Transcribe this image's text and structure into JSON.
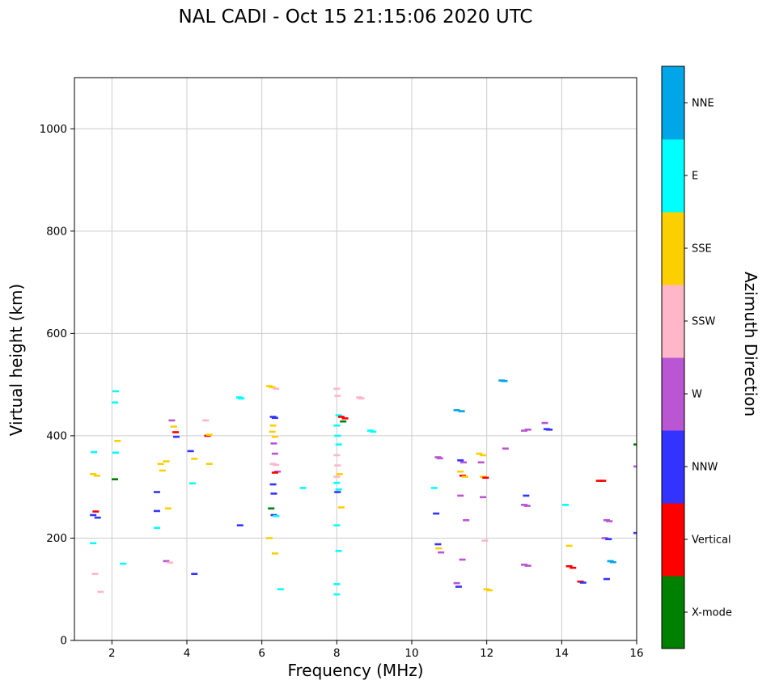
{
  "title": "NAL CADI - Oct 15 21:15:06 2020 UTC",
  "chart_data": {
    "type": "scatter",
    "title": "NAL CADI - Oct 15 21:15:06 2020 UTC",
    "xlabel": "Frequency (MHz)",
    "ylabel": "Virtual height (km)",
    "legend_title": "Azimuth Direction",
    "xlim": [
      1,
      16
    ],
    "ylim": [
      0,
      1100
    ],
    "x_ticks": [
      2,
      4,
      6,
      8,
      10,
      12,
      14,
      16
    ],
    "y_ticks": [
      0,
      200,
      400,
      600,
      800,
      1000
    ],
    "grid": true,
    "marker": "horizontal-dash",
    "legend_position": "right-colorbar",
    "categories": [
      {
        "label": "X-mode",
        "color": "#008000"
      },
      {
        "label": "Vertical",
        "color": "#fe0000"
      },
      {
        "label": "NNW",
        "color": "#3333ff"
      },
      {
        "label": "W",
        "color": "#ba55d3"
      },
      {
        "label": "SSW",
        "color": "#ffb6c8"
      },
      {
        "label": "SSE",
        "color": "#fccf00"
      },
      {
        "label": "E",
        "color": "#00ffff"
      },
      {
        "label": "NNE",
        "color": "#00a6e8"
      }
    ],
    "points": [
      [
        1.5,
        325,
        "SSE"
      ],
      [
        1.6,
        322,
        "SSE"
      ],
      [
        1.52,
        368,
        "E"
      ],
      [
        1.5,
        245,
        "NNW"
      ],
      [
        1.57,
        252,
        "Vertical"
      ],
      [
        1.62,
        240,
        "NNW"
      ],
      [
        1.5,
        190,
        "E"
      ],
      [
        1.55,
        130,
        "SSW"
      ],
      [
        1.7,
        95,
        "SSW"
      ],
      [
        2.1,
        487,
        "E"
      ],
      [
        2.08,
        465,
        "E"
      ],
      [
        2.15,
        390,
        "SSE"
      ],
      [
        2.1,
        367,
        "E"
      ],
      [
        2.08,
        315,
        "X-mode"
      ],
      [
        2.3,
        150,
        "E"
      ],
      [
        3.3,
        345,
        "SSE"
      ],
      [
        3.35,
        332,
        "SSE"
      ],
      [
        3.45,
        350,
        "SSE"
      ],
      [
        3.2,
        290,
        "NNW"
      ],
      [
        3.2,
        253,
        "NNW"
      ],
      [
        3.2,
        220,
        "E"
      ],
      [
        3.5,
        258,
        "SSE"
      ],
      [
        3.45,
        155,
        "W"
      ],
      [
        3.55,
        152,
        "SSW"
      ],
      [
        3.6,
        430,
        "W"
      ],
      [
        3.65,
        418,
        "SSE"
      ],
      [
        3.7,
        407,
        "Vertical"
      ],
      [
        3.72,
        398,
        "NNW"
      ],
      [
        4.1,
        370,
        "NNW"
      ],
      [
        4.2,
        355,
        "SSE"
      ],
      [
        4.15,
        307,
        "E"
      ],
      [
        4.2,
        130,
        "NNW"
      ],
      [
        4.5,
        430,
        "SSW"
      ],
      [
        4.55,
        400,
        "Vertical"
      ],
      [
        4.6,
        402,
        "SSE"
      ],
      [
        4.6,
        345,
        "SSE"
      ],
      [
        5.4,
        475,
        "E"
      ],
      [
        5.45,
        473,
        "E"
      ],
      [
        5.42,
        225,
        "NNW"
      ],
      [
        6.2,
        497,
        "SSE"
      ],
      [
        6.28,
        495,
        "SSE"
      ],
      [
        6.38,
        492,
        "SSW"
      ],
      [
        6.3,
        437,
        "NNW"
      ],
      [
        6.35,
        435,
        "NNW"
      ],
      [
        6.3,
        420,
        "SSE"
      ],
      [
        6.28,
        408,
        "SSE"
      ],
      [
        6.35,
        398,
        "SSE"
      ],
      [
        6.32,
        385,
        "W"
      ],
      [
        6.35,
        365,
        "W"
      ],
      [
        6.3,
        345,
        "SSW"
      ],
      [
        6.38,
        343,
        "SSW"
      ],
      [
        6.42,
        330,
        "W"
      ],
      [
        6.35,
        328,
        "Vertical"
      ],
      [
        6.3,
        305,
        "NNW"
      ],
      [
        6.32,
        287,
        "NNW"
      ],
      [
        6.25,
        258,
        "X-mode"
      ],
      [
        6.32,
        245,
        "NNW"
      ],
      [
        6.38,
        243,
        "E"
      ],
      [
        6.2,
        200,
        "SSE"
      ],
      [
        6.35,
        170,
        "SSE"
      ],
      [
        6.5,
        100,
        "E"
      ],
      [
        7.1,
        298,
        "E"
      ],
      [
        8.0,
        492,
        "SSW"
      ],
      [
        8.02,
        478,
        "SSW"
      ],
      [
        8.05,
        440,
        "E"
      ],
      [
        8.12,
        437,
        "Vertical"
      ],
      [
        8.22,
        434,
        "Vertical"
      ],
      [
        8.17,
        428,
        "X-mode"
      ],
      [
        8.0,
        420,
        "E"
      ],
      [
        8.02,
        400,
        "E"
      ],
      [
        8.05,
        383,
        "E"
      ],
      [
        8.0,
        362,
        "SSW"
      ],
      [
        8.02,
        342,
        "SSW"
      ],
      [
        8.07,
        325,
        "SSE"
      ],
      [
        8.0,
        320,
        "SSW"
      ],
      [
        8.0,
        308,
        "E"
      ],
      [
        8.05,
        295,
        "E"
      ],
      [
        8.02,
        290,
        "NNW"
      ],
      [
        8.12,
        260,
        "SSE"
      ],
      [
        8.0,
        225,
        "E"
      ],
      [
        8.05,
        175,
        "E"
      ],
      [
        8.0,
        110,
        "E"
      ],
      [
        8.0,
        90,
        "E"
      ],
      [
        8.6,
        475,
        "SSW"
      ],
      [
        8.65,
        473,
        "SSW"
      ],
      [
        8.9,
        410,
        "E"
      ],
      [
        8.97,
        408,
        "E"
      ],
      [
        10.6,
        298,
        "E"
      ],
      [
        10.7,
        358,
        "W"
      ],
      [
        10.75,
        356,
        "W"
      ],
      [
        10.65,
        248,
        "NNW"
      ],
      [
        10.7,
        188,
        "NNW"
      ],
      [
        10.72,
        180,
        "SSE"
      ],
      [
        10.78,
        172,
        "W"
      ],
      [
        11.2,
        450,
        "NNE"
      ],
      [
        11.33,
        448,
        "NNE"
      ],
      [
        11.3,
        352,
        "NNW"
      ],
      [
        11.38,
        348,
        "W"
      ],
      [
        11.3,
        330,
        "SSE"
      ],
      [
        11.36,
        322,
        "Vertical"
      ],
      [
        11.42,
        320,
        "SSE"
      ],
      [
        11.3,
        283,
        "W"
      ],
      [
        11.45,
        235,
        "W"
      ],
      [
        11.35,
        158,
        "W"
      ],
      [
        11.2,
        112,
        "W"
      ],
      [
        11.25,
        105,
        "NNW"
      ],
      [
        11.8,
        365,
        "SSE"
      ],
      [
        11.9,
        362,
        "SSE"
      ],
      [
        11.85,
        348,
        "W"
      ],
      [
        11.9,
        320,
        "SSE"
      ],
      [
        11.97,
        318,
        "Vertical"
      ],
      [
        11.9,
        280,
        "W"
      ],
      [
        11.95,
        195,
        "SSW"
      ],
      [
        12.0,
        100,
        "SSE"
      ],
      [
        12.07,
        98,
        "SSE"
      ],
      [
        12.4,
        508,
        "NNE"
      ],
      [
        12.47,
        507,
        "NNE"
      ],
      [
        12.5,
        375,
        "W"
      ],
      [
        13.0,
        410,
        "W"
      ],
      [
        13.1,
        412,
        "W"
      ],
      [
        13.05,
        283,
        "NNW"
      ],
      [
        13.0,
        265,
        "W"
      ],
      [
        13.08,
        263,
        "W"
      ],
      [
        13.0,
        148,
        "W"
      ],
      [
        13.1,
        146,
        "W"
      ],
      [
        13.55,
        425,
        "W"
      ],
      [
        13.6,
        413,
        "NNW"
      ],
      [
        13.67,
        412,
        "NNW"
      ],
      [
        14.1,
        265,
        "E"
      ],
      [
        14.2,
        185,
        "SSE"
      ],
      [
        14.2,
        145,
        "Vertical"
      ],
      [
        14.3,
        142,
        "Vertical"
      ],
      [
        14.5,
        115,
        "Vertical"
      ],
      [
        14.57,
        113,
        "NNW"
      ],
      [
        15.0,
        312,
        "Vertical"
      ],
      [
        15.1,
        312,
        "Vertical"
      ],
      [
        15.2,
        235,
        "W"
      ],
      [
        15.27,
        233,
        "W"
      ],
      [
        15.15,
        200,
        "W"
      ],
      [
        15.25,
        198,
        "NNW"
      ],
      [
        15.3,
        155,
        "NNE"
      ],
      [
        15.37,
        153,
        "NNE"
      ],
      [
        15.2,
        120,
        "NNW"
      ],
      [
        16.0,
        383,
        "X-mode"
      ],
      [
        16.0,
        340,
        "W"
      ],
      [
        16.0,
        210,
        "NNW"
      ]
    ]
  }
}
